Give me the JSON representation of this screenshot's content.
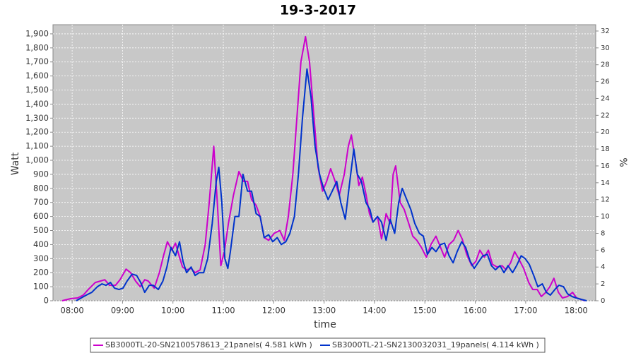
{
  "chart_data": {
    "type": "line",
    "title": "19-3-2017",
    "xlabel": "time",
    "ylabel": "Watt",
    "y2label": "%",
    "xlim": [
      7.62,
      18.39
    ],
    "xticks": [
      {
        "value": 8,
        "label": "08:00"
      },
      {
        "value": 9,
        "label": "09:00"
      },
      {
        "value": 10,
        "label": "10:00"
      },
      {
        "value": 11,
        "label": "11:00"
      },
      {
        "value": 12,
        "label": "12:00"
      },
      {
        "value": 13,
        "label": "13:00"
      },
      {
        "value": 14,
        "label": "14:00"
      },
      {
        "value": 15,
        "label": "15:00"
      },
      {
        "value": 16,
        "label": "16:00"
      },
      {
        "value": 17,
        "label": "17:00"
      },
      {
        "value": 18,
        "label": "18:00"
      }
    ],
    "ylim": [
      0,
      1965
    ],
    "yticks": [
      0,
      100,
      200,
      300,
      400,
      500,
      600,
      700,
      800,
      900,
      {
        "value": 1000,
        "label": "1,000"
      },
      {
        "value": 1100,
        "label": "1,100"
      },
      {
        "value": 1200,
        "label": "1,200"
      },
      {
        "value": 1300,
        "label": "1,300"
      },
      {
        "value": 1400,
        "label": "1,400"
      },
      {
        "value": 1500,
        "label": "1,500"
      },
      {
        "value": 1600,
        "label": "1,600"
      },
      {
        "value": 1700,
        "label": "1,700"
      },
      {
        "value": 1800,
        "label": "1,800"
      },
      {
        "value": 1900,
        "label": "1,900"
      }
    ],
    "y2lim": [
      0,
      32.75
    ],
    "y2ticks": [
      0,
      2,
      4,
      6,
      8,
      10,
      12,
      14,
      16,
      18,
      20,
      22,
      24,
      26,
      28,
      30,
      32
    ],
    "grid": true,
    "series": [
      {
        "name": "SB3000TL-20-SN2100578613_21panels( 4.581 kWh )",
        "color": "#cc00cc",
        "x": [
          7.8,
          7.97,
          8.11,
          8.22,
          8.32,
          8.46,
          8.56,
          8.65,
          8.74,
          8.86,
          8.95,
          9.07,
          9.16,
          9.26,
          9.35,
          9.44,
          9.51,
          9.63,
          9.73,
          9.82,
          9.89,
          9.98,
          10.05,
          10.13,
          10.19,
          10.27,
          10.36,
          10.44,
          10.54,
          10.64,
          10.72,
          10.81,
          10.88,
          10.95,
          11.02,
          11.1,
          11.2,
          11.31,
          11.4,
          11.48,
          11.56,
          11.65,
          11.73,
          11.81,
          11.9,
          12.01,
          12.12,
          12.21,
          12.29,
          12.38,
          12.46,
          12.54,
          12.63,
          12.71,
          12.8,
          12.88,
          12.97,
          13.05,
          13.13,
          13.22,
          13.3,
          13.4,
          13.48,
          13.54,
          13.62,
          13.69,
          13.76,
          13.83,
          13.9,
          13.97,
          14.06,
          14.14,
          14.23,
          14.31,
          14.37,
          14.42,
          14.51,
          14.59,
          14.68,
          14.76,
          14.84,
          14.93,
          15.03,
          15.12,
          15.22,
          15.31,
          15.39,
          15.48,
          15.57,
          15.66,
          15.74,
          15.83,
          15.93,
          16.01,
          16.09,
          16.18,
          16.26,
          16.34,
          16.43,
          16.53,
          16.61,
          16.7,
          16.78,
          16.86,
          16.96,
          17.06,
          17.14,
          17.23,
          17.31,
          17.4,
          17.48,
          17.56,
          17.65,
          17.73,
          17.83,
          17.93,
          18.01,
          18.1,
          18.18
        ],
        "values": [
          0,
          15,
          20,
          40,
          80,
          130,
          140,
          150,
          110,
          110,
          150,
          225,
          200,
          140,
          100,
          150,
          140,
          90,
          200,
          330,
          420,
          360,
          410,
          310,
          240,
          220,
          230,
          200,
          220,
          400,
          700,
          1100,
          700,
          250,
          350,
          550,
          750,
          920,
          850,
          850,
          720,
          680,
          600,
          450,
          430,
          480,
          500,
          430,
          600,
          900,
          1300,
          1700,
          1880,
          1700,
          1300,
          950,
          780,
          850,
          940,
          850,
          750,
          900,
          1100,
          1180,
          1000,
          820,
          880,
          760,
          620,
          560,
          600,
          440,
          620,
          550,
          900,
          960,
          700,
          650,
          550,
          460,
          430,
          380,
          310,
          400,
          460,
          380,
          310,
          400,
          430,
          500,
          440,
          330,
          250,
          280,
          360,
          310,
          360,
          260,
          240,
          250,
          220,
          270,
          350,
          300,
          230,
          130,
          80,
          80,
          30,
          60,
          100,
          160,
          60,
          20,
          30,
          60,
          20,
          10,
          0
        ]
      },
      {
        "name": "SB3000TL-21-SN2130032031_19panels( 4.114 kWh )",
        "color": "#0033cc",
        "x": [
          8.08,
          8.18,
          8.28,
          8.39,
          8.5,
          8.59,
          8.67,
          8.76,
          8.84,
          8.93,
          9.01,
          9.09,
          9.19,
          9.28,
          9.36,
          9.44,
          9.53,
          9.61,
          9.71,
          9.8,
          9.88,
          9.96,
          10.05,
          10.13,
          10.2,
          10.27,
          10.36,
          10.44,
          10.52,
          10.61,
          10.69,
          10.78,
          10.86,
          10.91,
          10.97,
          11.03,
          11.09,
          11.14,
          11.23,
          11.31,
          11.39,
          11.48,
          11.56,
          11.65,
          11.73,
          11.81,
          11.9,
          11.98,
          12.07,
          12.15,
          12.24,
          12.32,
          12.41,
          12.49,
          12.57,
          12.66,
          12.74,
          12.82,
          12.91,
          12.99,
          13.08,
          13.16,
          13.25,
          13.33,
          13.42,
          13.51,
          13.59,
          13.66,
          13.74,
          13.83,
          13.91,
          13.97,
          14.06,
          14.14,
          14.23,
          14.31,
          14.4,
          14.48,
          14.55,
          14.64,
          14.72,
          14.8,
          14.89,
          14.97,
          15.05,
          15.14,
          15.22,
          15.31,
          15.39,
          15.48,
          15.56,
          15.64,
          15.73,
          15.81,
          15.9,
          15.98,
          16.07,
          16.15,
          16.24,
          16.32,
          16.4,
          16.49,
          16.57,
          16.65,
          16.74,
          16.82,
          16.91,
          16.99,
          17.07,
          17.16,
          17.24,
          17.33,
          17.41,
          17.49,
          17.58,
          17.66,
          17.75,
          17.83,
          17.92,
          18.0,
          18.1,
          18.21
        ],
        "values": [
          0,
          20,
          40,
          60,
          100,
          120,
          110,
          130,
          90,
          80,
          90,
          140,
          190,
          180,
          130,
          60,
          110,
          110,
          80,
          140,
          240,
          380,
          320,
          420,
          280,
          200,
          240,
          180,
          200,
          200,
          300,
          550,
          850,
          950,
          700,
          300,
          230,
          350,
          600,
          600,
          900,
          780,
          780,
          620,
          600,
          450,
          470,
          420,
          450,
          400,
          420,
          480,
          600,
          900,
          1300,
          1650,
          1450,
          1100,
          900,
          800,
          720,
          780,
          850,
          700,
          580,
          850,
          1080,
          900,
          850,
          700,
          650,
          560,
          600,
          560,
          430,
          580,
          480,
          700,
          800,
          720,
          650,
          550,
          480,
          460,
          330,
          380,
          350,
          400,
          410,
          320,
          270,
          350,
          420,
          380,
          280,
          230,
          280,
          320,
          330,
          250,
          220,
          250,
          200,
          250,
          200,
          250,
          320,
          300,
          260,
          180,
          100,
          120,
          60,
          40,
          80,
          110,
          100,
          50,
          30,
          20,
          10,
          0
        ]
      }
    ]
  }
}
